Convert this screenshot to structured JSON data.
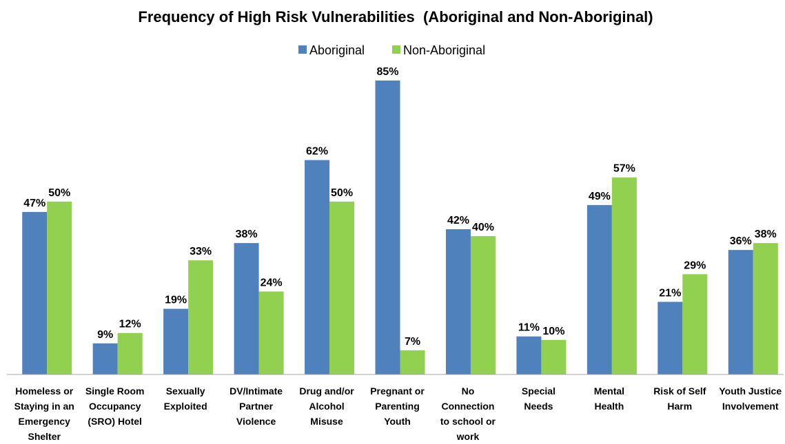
{
  "colors": {
    "aboriginal": "#4f81bd",
    "non_aboriginal": "#92d050",
    "axis": "#a6a6a6"
  },
  "chart_data": {
    "type": "bar",
    "title": "Frequency of High Risk Vulnerabilities  (Aboriginal and Non-Aboriginal)",
    "xlabel": "",
    "ylabel": "",
    "ylim": [
      0,
      90
    ],
    "grid": false,
    "legend_position": "top-center",
    "categories": [
      [
        "Homeless or",
        "Staying in an",
        "Emergency",
        "Shelter"
      ],
      [
        "Single Room",
        "Occupancy",
        "(SRO) Hotel"
      ],
      [
        "Sexually",
        "Exploited"
      ],
      [
        "DV/Intimate",
        "Partner",
        "Violence"
      ],
      [
        "Drug and/or",
        "Alcohol",
        "Misuse"
      ],
      [
        "Pregnant or",
        "Parenting",
        "Youth"
      ],
      [
        "No",
        "Connection",
        "to school or",
        "work"
      ],
      [
        "Special",
        "Needs"
      ],
      [
        "Mental",
        "Health"
      ],
      [
        "Risk of Self",
        "Harm"
      ],
      [
        "Youth Justice",
        "Involvement"
      ]
    ],
    "series": [
      {
        "name": "Aboriginal",
        "values": [
          47,
          9,
          19,
          38,
          62,
          85,
          42,
          11,
          49,
          21,
          36
        ]
      },
      {
        "name": "Non-Aboriginal",
        "values": [
          50,
          12,
          33,
          24,
          50,
          7,
          40,
          10,
          57,
          29,
          38
        ]
      }
    ],
    "value_format": "%"
  }
}
